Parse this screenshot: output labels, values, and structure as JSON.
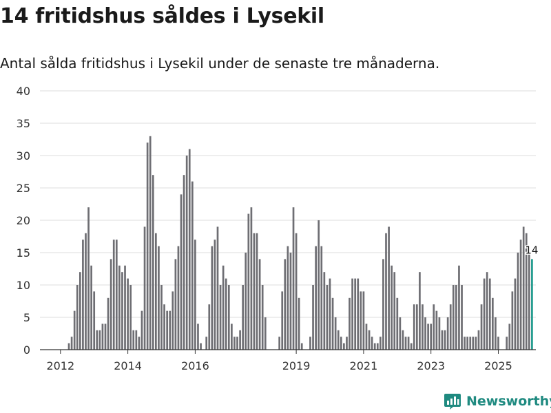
{
  "header": {
    "title": "14 fritidshus såldes i Lysekil",
    "subtitle": "Antal sålda fritidshus i Lysekil under de senaste tre månaderna."
  },
  "brand": {
    "name": "Newsworthy"
  },
  "colors": {
    "bar": "#6e6e73",
    "highlight": "#1f9a8c",
    "grid": "#dddddd",
    "axis": "#333333"
  },
  "chart_data": {
    "type": "bar",
    "title": "14 fritidshus såldes i Lysekil",
    "subtitle": "Antal sålda fritidshus i Lysekil under de senaste tre månaderna.",
    "xlabel": "",
    "ylabel": "",
    "ylim": [
      0,
      40
    ],
    "yticks": [
      0,
      5,
      10,
      15,
      20,
      25,
      30,
      35,
      40
    ],
    "x_ticks": [
      {
        "label": "2012",
        "index": 6
      },
      {
        "label": "2014",
        "index": 30
      },
      {
        "label": "2016",
        "index": 54
      },
      {
        "label": "2019",
        "index": 90
      },
      {
        "label": "2021",
        "index": 114
      },
      {
        "label": "2023",
        "index": 138
      },
      {
        "label": "2025",
        "index": 162
      }
    ],
    "values": [
      0,
      0,
      0,
      0,
      0,
      0,
      0,
      0,
      0,
      1,
      2,
      6,
      10,
      12,
      17,
      18,
      22,
      13,
      9,
      3,
      3,
      4,
      4,
      8,
      14,
      17,
      17,
      13,
      12,
      13,
      11,
      10,
      3,
      3,
      2,
      6,
      19,
      32,
      33,
      27,
      18,
      16,
      10,
      7,
      6,
      6,
      9,
      14,
      16,
      24,
      27,
      30,
      31,
      26,
      17,
      4,
      1,
      0,
      2,
      7,
      16,
      17,
      19,
      10,
      13,
      11,
      10,
      4,
      2,
      2,
      3,
      10,
      15,
      21,
      22,
      18,
      18,
      14,
      10,
      5,
      0,
      0,
      0,
      0,
      2,
      9,
      14,
      16,
      15,
      22,
      18,
      8,
      1,
      0,
      0,
      2,
      10,
      16,
      20,
      16,
      12,
      10,
      11,
      8,
      5,
      3,
      2,
      1,
      2,
      8,
      11,
      11,
      11,
      9,
      9,
      4,
      3,
      2,
      1,
      1,
      2,
      14,
      18,
      19,
      13,
      12,
      8,
      5,
      3,
      2,
      2,
      1,
      7,
      7,
      12,
      7,
      5,
      4,
      4,
      7,
      6,
      5,
      3,
      3,
      5,
      7,
      10,
      10,
      13,
      10,
      2,
      2,
      2,
      2,
      2,
      3,
      7,
      11,
      12,
      11,
      8,
      5,
      2,
      0,
      0,
      2,
      4,
      9,
      11,
      15,
      17,
      19,
      18,
      15,
      14
    ],
    "highlight_last": true,
    "annotation": "14"
  }
}
